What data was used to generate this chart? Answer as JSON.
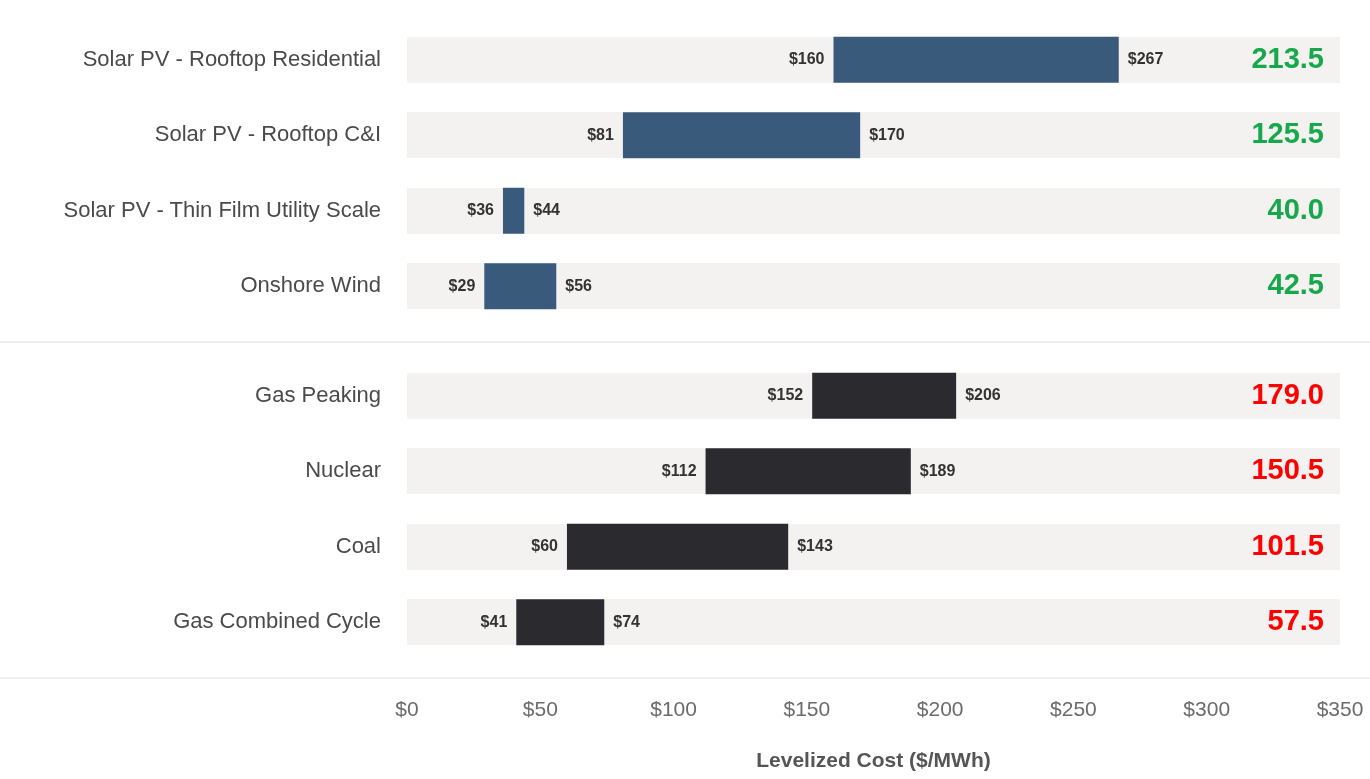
{
  "chart_data": [
    {
      "type": "bar",
      "orientation": "horizontal",
      "categories": [
        "Solar PV - Rooftop Residential",
        "Solar PV - Rooftop C&I",
        "Solar PV - Thin Film Utility Scale",
        "Onshore Wind"
      ],
      "base": [
        160,
        81,
        36,
        29
      ],
      "values": [
        107,
        89,
        8,
        27
      ],
      "color": "#3a5a7c",
      "xlim": [
        0,
        350
      ],
      "tick_labels": "y",
      "grid": false,
      "legend": false,
      "annotations": [
        {
          "text": "$160",
          "x": 160,
          "y": "Solar PV - Rooftop Residential"
        },
        {
          "text": "$267",
          "x": 267,
          "y": "Solar PV - Rooftop Residential"
        },
        {
          "text": "$81",
          "x": 81,
          "y": "Solar PV - Rooftop C&I"
        },
        {
          "text": "$170",
          "x": 170,
          "y": "Solar PV - Rooftop C&I"
        },
        {
          "text": "$36",
          "x": 36,
          "y": "Solar PV - Thin Film Utility Scale"
        },
        {
          "text": "$44",
          "x": 44,
          "y": "Solar PV - Thin Film Utility Scale"
        },
        {
          "text": "$29",
          "x": 29,
          "y": "Onshore Wind"
        },
        {
          "text": "$56",
          "x": 56,
          "y": "Onshore Wind"
        },
        "213.5",
        "125.5",
        "40.0",
        "42.5"
      ]
    },
    {
      "type": "bar",
      "orientation": "horizontal",
      "xlabel": "Levelized Cost ($/MWh)",
      "categories": [
        "Gas Peaking",
        "Nuclear",
        "Coal",
        "Gas Combined Cycle"
      ],
      "base": [
        152,
        112,
        60,
        41
      ],
      "values": [
        54,
        77,
        83,
        33
      ],
      "color": "#2b2a2f",
      "xlim": [
        0,
        350
      ],
      "xticks": [
        {
          "value": 0,
          "label": "$0"
        },
        {
          "value": 50,
          "label": "$50"
        },
        {
          "value": 100,
          "label": "$100"
        },
        {
          "value": 150,
          "label": "$150"
        },
        {
          "value": 200,
          "label": "$200"
        },
        {
          "value": 250,
          "label": "$250"
        },
        {
          "value": 300,
          "label": "$300"
        },
        {
          "value": 350,
          "label": "$350"
        }
      ],
      "grid": false,
      "legend": false,
      "annotations": [
        {
          "text": "$152",
          "x": 152,
          "y": "Gas Peaking"
        },
        {
          "text": "$206",
          "x": 206,
          "y": "Gas Peaking"
        },
        {
          "text": "$112",
          "x": 112,
          "y": "Nuclear"
        },
        {
          "text": "$189",
          "x": 189,
          "y": "Nuclear"
        },
        {
          "text": "$60",
          "x": 60,
          "y": "Coal"
        },
        {
          "text": "$143",
          "x": 143,
          "y": "Coal"
        },
        {
          "text": "$41",
          "x": 41,
          "y": "Gas Combined Cycle"
        },
        {
          "text": "$74",
          "x": 74,
          "y": "Gas Combined Cycle"
        },
        "179.0",
        "150.5",
        "101.5",
        "57.5"
      ]
    }
  ]
}
